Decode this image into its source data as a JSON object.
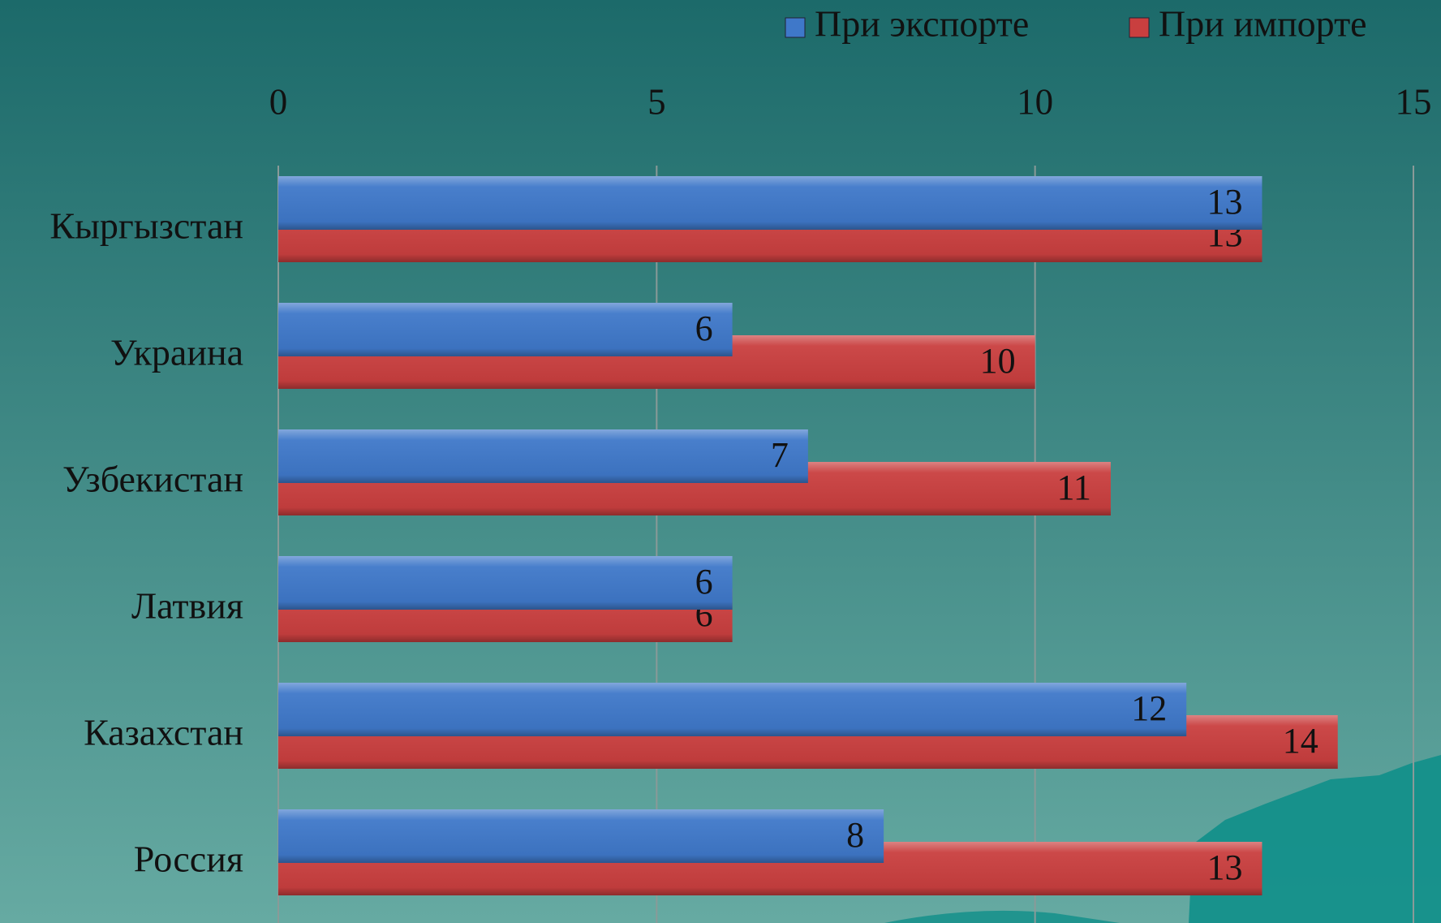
{
  "chart_data": {
    "type": "bar",
    "orientation": "horizontal",
    "categories": [
      "Кыргызстан",
      "Украина",
      "Узбекистан",
      "Латвия",
      "Казахстан",
      "Россия"
    ],
    "series": [
      {
        "name": "При экспорте",
        "color": "#3f78c9",
        "values": [
          13,
          6,
          7,
          6,
          12,
          8
        ]
      },
      {
        "name": "При импорте",
        "color": "#c93f3f",
        "values": [
          13,
          10,
          11,
          6,
          14,
          13
        ]
      }
    ],
    "xlim": [
      0,
      15
    ],
    "xticks": [
      0,
      5,
      10,
      15
    ],
    "grid": true,
    "legend": "top-right"
  }
}
